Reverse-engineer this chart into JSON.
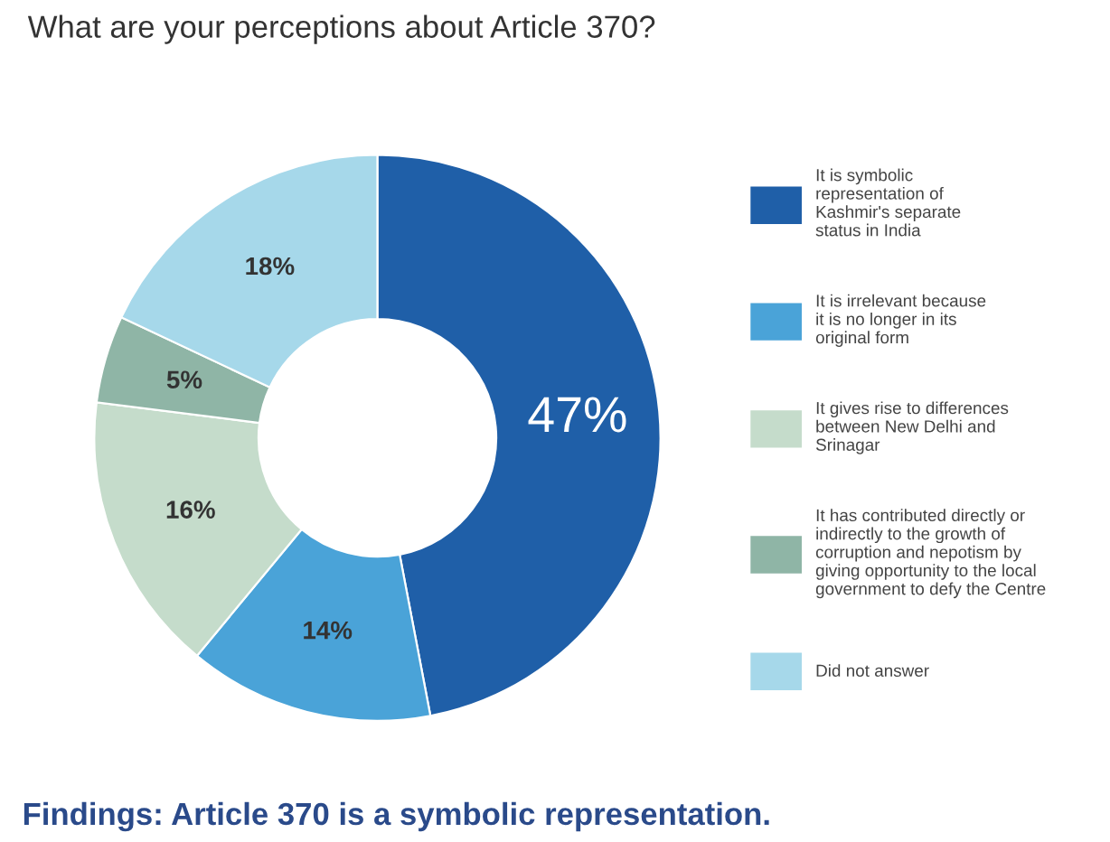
{
  "chart_data": {
    "type": "donut",
    "title": "What are your perceptions about Article 370?",
    "categories": [
      "It is symbolic\nrepresentation of\nKashmir's separate\nstatus in India",
      "It is irrelevant because\nit is no longer in its\noriginal form",
      "It gives rise to differences\nbetween New Delhi and\nSrinagar",
      "It has contributed directly or\nindirectly to the growth of\ncorruption and nepotism by\ngiving opportunity to the local\ngovernment to defy the Centre",
      "Did not answer"
    ],
    "values": [
      47,
      14,
      16,
      5,
      18
    ],
    "colors": [
      "#1f5fa8",
      "#4aa3d8",
      "#c5dccb",
      "#8fb5a6",
      "#a6d8ea"
    ],
    "value_labels": [
      "47%",
      "14%",
      "16%",
      "5%",
      "18%"
    ],
    "legend": "right",
    "annotations": [
      "Findings: Article 370 is a symbolic representation."
    ]
  }
}
